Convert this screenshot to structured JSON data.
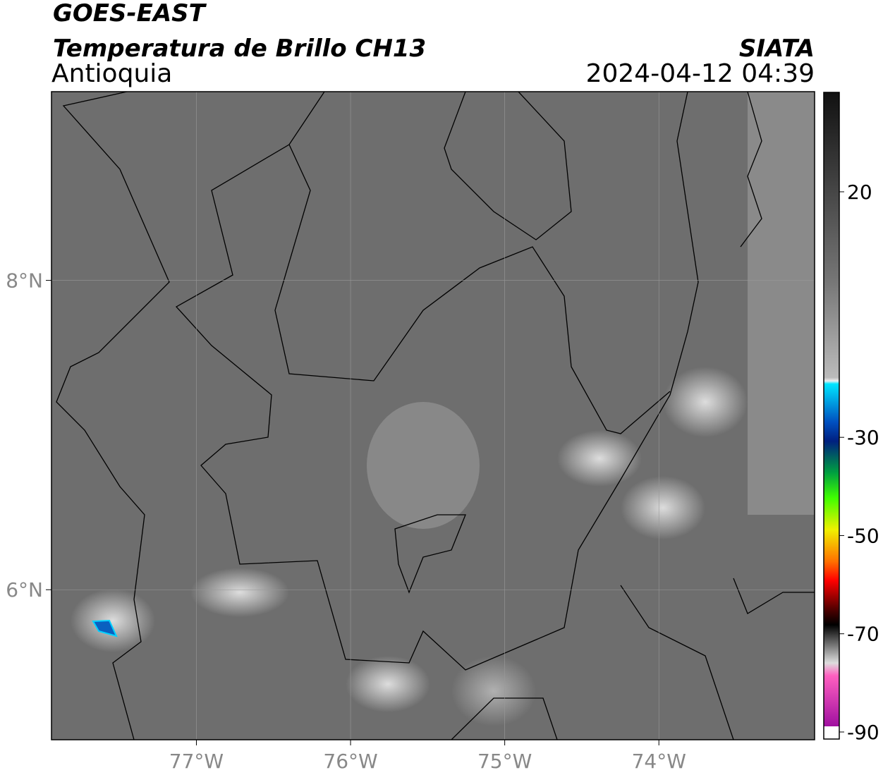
{
  "header": {
    "title": "GOES-EAST",
    "subtitle": "Temperatura de Brillo CH13",
    "region": "Antioquia",
    "source": "SIATA",
    "timestamp": "2024-04-12 04:39"
  },
  "map": {
    "lonlim": [
      -77.94,
      -72.99
    ],
    "latlim": [
      5.03,
      9.22
    ],
    "xticks": [
      {
        "value": -77,
        "label": "77°W"
      },
      {
        "value": -76,
        "label": "76°W"
      },
      {
        "value": -75,
        "label": "75°W"
      },
      {
        "value": -74,
        "label": "74°W"
      }
    ],
    "yticks": [
      {
        "value": 8,
        "label": "8°N"
      },
      {
        "value": 6,
        "label": "6°N"
      }
    ]
  },
  "colorbar": {
    "lim": [
      -90,
      40
    ],
    "ticks": [
      20,
      -30,
      -50,
      -70,
      -90
    ]
  }
}
